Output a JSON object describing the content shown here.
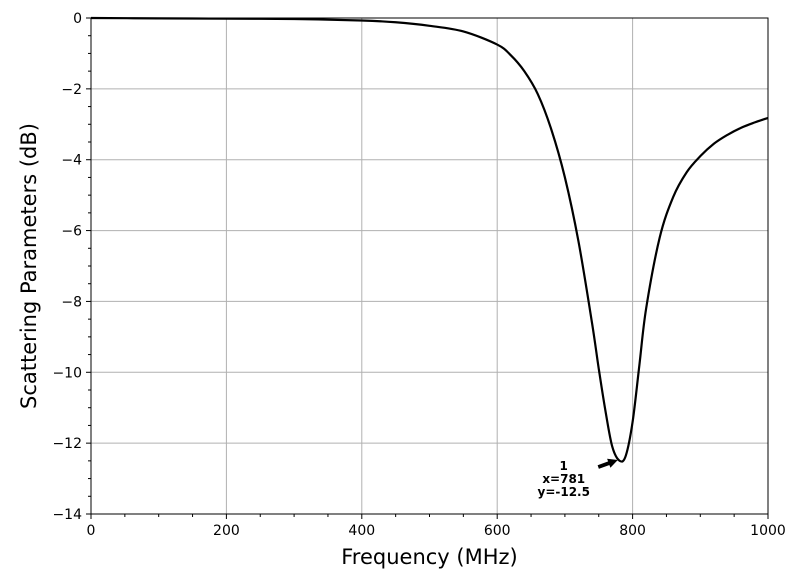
{
  "chart_data": {
    "type": "line",
    "title": "",
    "xlabel": "Frequency (MHz)",
    "ylabel": "Scattering Parameters (dB)",
    "xlim": [
      0,
      1000
    ],
    "ylim": [
      -14,
      0
    ],
    "x_ticks": [
      0,
      200,
      400,
      600,
      800,
      1000
    ],
    "y_ticks": [
      0,
      -2,
      -4,
      -6,
      -8,
      -10,
      -12,
      -14
    ],
    "x_tick_labels": [
      "0",
      "200",
      "400",
      "600",
      "800",
      "1000"
    ],
    "y_tick_labels": [
      "0",
      "−2",
      "−4",
      "−6",
      "−8",
      "−10",
      "−12",
      "−14"
    ],
    "grid": true,
    "line_color": "#000000",
    "series": [
      {
        "x": [
          0,
          100,
          200,
          300,
          400,
          450,
          500,
          550,
          600,
          620,
          640,
          660,
          680,
          700,
          720,
          740,
          750,
          760,
          770,
          781,
          790,
          800,
          810,
          820,
          840,
          860,
          880,
          900,
          920,
          940,
          960,
          980,
          1000
        ],
        "y": [
          0,
          -0.01,
          -0.02,
          -0.03,
          -0.07,
          -0.12,
          -0.22,
          -0.38,
          -0.75,
          -1.05,
          -1.5,
          -2.15,
          -3.15,
          -4.5,
          -6.3,
          -8.6,
          -9.9,
          -11.1,
          -12.1,
          -12.5,
          -12.35,
          -11.4,
          -9.8,
          -8.2,
          -6.2,
          -5.05,
          -4.35,
          -3.9,
          -3.55,
          -3.3,
          -3.1,
          -2.95,
          -2.82
        ]
      }
    ],
    "annotation": {
      "x": 781,
      "y": -12.5,
      "lines": [
        "1",
        "x=781",
        "y=-12.5"
      ]
    }
  }
}
